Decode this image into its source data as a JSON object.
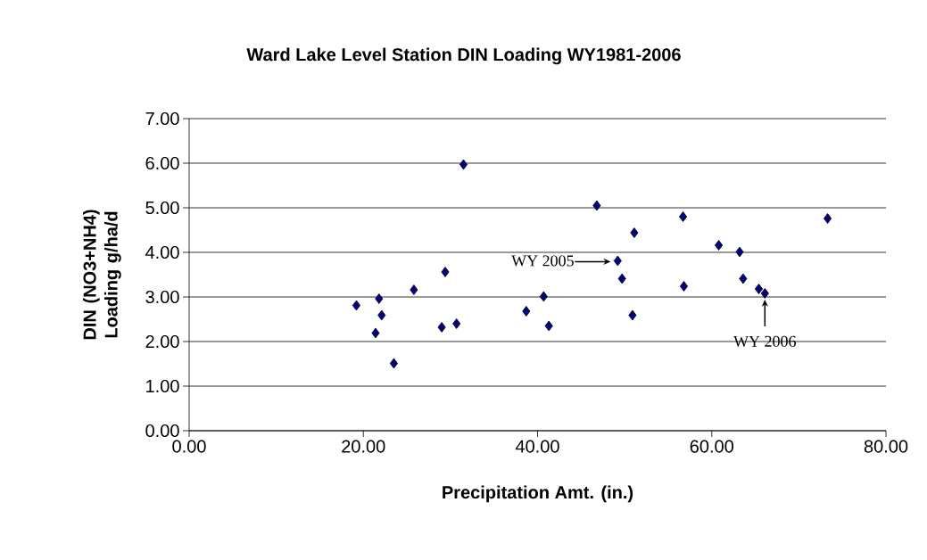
{
  "chart_data": {
    "type": "scatter",
    "title": "Ward Lake Level Station DIN Loading WY1981-2006",
    "xlabel": "Precipitation Amt. (in.)",
    "ylabel": "DIN (NO3+NH4) Loading g/ha/d",
    "x": [
      19.2,
      21.8,
      22.1,
      21.4,
      23.5,
      25.8,
      29.4,
      29.0,
      30.7,
      31.5,
      38.7,
      40.7,
      41.3,
      46.8,
      49.2,
      49.7,
      50.9,
      51.1,
      56.7,
      56.8,
      60.8,
      63.2,
      63.6,
      65.4,
      66.1,
      73.3
    ],
    "values": [
      2.81,
      2.96,
      2.59,
      2.19,
      1.51,
      3.16,
      3.56,
      2.32,
      2.4,
      5.97,
      2.68,
      3.01,
      2.35,
      5.05,
      3.81,
      3.41,
      2.59,
      4.44,
      4.8,
      3.24,
      4.16,
      4.01,
      3.41,
      3.18,
      3.08,
      4.76
    ],
    "color": "#000080",
    "marker": "diamond",
    "grid": "y",
    "xlim": [
      0,
      80
    ],
    "ylim": [
      0,
      7
    ],
    "xticks": [
      {
        "value": 0,
        "label": "0.00"
      },
      {
        "value": 20,
        "label": "20.00"
      },
      {
        "value": 40,
        "label": "40.00"
      },
      {
        "value": 60,
        "label": "60.00"
      },
      {
        "value": 80,
        "label": "80.00"
      }
    ],
    "yticks": [
      {
        "value": 0,
        "label": "0.00"
      },
      {
        "value": 1,
        "label": "1.00"
      },
      {
        "value": 2,
        "label": "2.00"
      },
      {
        "value": 3,
        "label": "3.00"
      },
      {
        "value": 4,
        "label": "4.00"
      },
      {
        "value": 5,
        "label": "5.00"
      },
      {
        "value": 6,
        "label": "6.00"
      },
      {
        "value": 7,
        "label": "7.00"
      }
    ],
    "annotations": [
      {
        "text": "WY 2005",
        "x": 49.2,
        "y": 3.81
      },
      {
        "text": "WY 2006",
        "x": 66.1,
        "y": 3.08
      }
    ]
  }
}
